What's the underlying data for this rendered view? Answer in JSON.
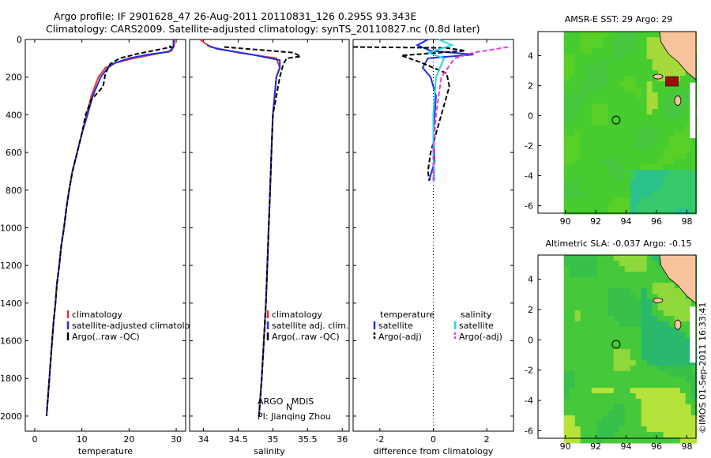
{
  "header": {
    "title_line1": "Argo profile: IF 2901628_47 26-Aug-2011 20110831_126 0.295S 93.343E",
    "title_line2": "Climatology: CARS2009. Satellite-adjusted climatology: synTS_20110827.nc (0.8d later)"
  },
  "colors": {
    "climatology": "#e8322a",
    "satellite": "#1f2fe0",
    "argo": "#000000",
    "sal_satellite": "#29d6e8",
    "sal_argo": "#e83ae0",
    "map_green": "#3fcf2a",
    "land": "#f7c39a",
    "hotspot": "#9c0d0d"
  },
  "depth_axis": {
    "ticks": [
      "0",
      "200",
      "400",
      "600",
      "800",
      "1000",
      "1200",
      "1400",
      "1600",
      "1800",
      "2000"
    ]
  },
  "chart_data": [
    {
      "type": "line",
      "id": "temperature-profile",
      "xlabel": "temperature",
      "xlim": [
        -2,
        32
      ],
      "ylim": [
        2080,
        0
      ],
      "xticks": [
        "0",
        "10",
        "20",
        "30"
      ],
      "legend": [
        "climatology",
        "satellite-adjusted climatology",
        "Argo(..raw -QC)"
      ],
      "series": [
        {
          "name": "climatology",
          "points": [
            [
              29.6,
              0
            ],
            [
              29.6,
              30
            ],
            [
              29,
              60
            ],
            [
              25,
              80
            ],
            [
              21,
              100
            ],
            [
              17,
              125
            ],
            [
              15,
              150
            ],
            [
              13.5,
              200
            ],
            [
              12,
              300
            ],
            [
              11,
              400
            ],
            [
              10,
              500
            ],
            [
              9,
              600
            ],
            [
              8,
              700
            ],
            [
              7.3,
              800
            ],
            [
              6.7,
              900
            ],
            [
              6.2,
              1000
            ],
            [
              5.6,
              1100
            ],
            [
              5.2,
              1200
            ],
            [
              4.7,
              1300
            ],
            [
              4.4,
              1400
            ],
            [
              4,
              1500
            ],
            [
              3.7,
              1600
            ],
            [
              3.4,
              1700
            ],
            [
              3.1,
              1800
            ],
            [
              2.8,
              1900
            ],
            [
              2.5,
              2000
            ]
          ]
        },
        {
          "name": "satellite",
          "points": [
            [
              29.4,
              0
            ],
            [
              29.4,
              40
            ],
            [
              28.5,
              65
            ],
            [
              24,
              80
            ],
            [
              20,
              100
            ],
            [
              17,
              125
            ],
            [
              15.5,
              150
            ],
            [
              14,
              200
            ],
            [
              12.3,
              300
            ],
            [
              11.2,
              400
            ],
            [
              10,
              500
            ],
            [
              9,
              600
            ],
            [
              8,
              700
            ],
            [
              7.3,
              800
            ],
            [
              6.7,
              900
            ],
            [
              6.2,
              1000
            ],
            [
              5.6,
              1100
            ],
            [
              5.2,
              1200
            ],
            [
              4.7,
              1300
            ],
            [
              4.4,
              1400
            ],
            [
              4,
              1500
            ],
            [
              3.7,
              1600
            ],
            [
              3.4,
              1700
            ],
            [
              3.1,
              1800
            ],
            [
              2.8,
              1900
            ],
            [
              2.5,
              2000
            ]
          ]
        },
        {
          "name": "argo",
          "points": [
            [
              28.5,
              35
            ],
            [
              29,
              40
            ],
            [
              26,
              55
            ],
            [
              22,
              75
            ],
            [
              18,
              100
            ],
            [
              16,
              130
            ],
            [
              15,
              180
            ],
            [
              14.5,
              250
            ],
            [
              12,
              320
            ],
            [
              10.8,
              400
            ],
            [
              10,
              500
            ],
            [
              9,
              600
            ],
            [
              8,
              700
            ],
            [
              7.3,
              800
            ],
            [
              6.7,
              900
            ],
            [
              6.2,
              1000
            ],
            [
              5.6,
              1100
            ],
            [
              5.2,
              1200
            ],
            [
              4.7,
              1300
            ],
            [
              4.4,
              1400
            ],
            [
              4,
              1500
            ],
            [
              3.7,
              1600
            ],
            [
              3.4,
              1700
            ],
            [
              3.1,
              1800
            ],
            [
              2.8,
              1900
            ],
            [
              2.5,
              2000
            ]
          ]
        }
      ]
    },
    {
      "type": "line",
      "id": "salinity-profile",
      "xlabel": "salinity",
      "xlim": [
        33.8,
        36.1
      ],
      "ylim": [
        2080,
        0
      ],
      "xticks": [
        "34",
        "34.5",
        "35",
        "35.5",
        "36"
      ],
      "legend": [
        "climatology",
        "satellite adj. clim.",
        "Argo(..raw -QC)"
      ],
      "annotation_lines": [
        "ARGO",
        "N",
        "MDIS",
        "PI: Jianqing Zhou"
      ],
      "series": [
        {
          "name": "climatology",
          "points": [
            [
              33.95,
              0
            ],
            [
              34.1,
              40
            ],
            [
              34.5,
              70
            ],
            [
              35.05,
              100
            ],
            [
              35.1,
              150
            ],
            [
              35.05,
              200
            ],
            [
              35.0,
              400
            ],
            [
              34.98,
              600
            ],
            [
              34.96,
              800
            ],
            [
              34.94,
              1000
            ],
            [
              34.92,
              1200
            ],
            [
              34.9,
              1400
            ],
            [
              34.87,
              1600
            ],
            [
              34.84,
              1800
            ],
            [
              34.8,
              2000
            ]
          ]
        },
        {
          "name": "satellite",
          "points": [
            [
              34.05,
              30
            ],
            [
              34.2,
              50
            ],
            [
              34.7,
              80
            ],
            [
              35.1,
              110
            ],
            [
              35.1,
              150
            ],
            [
              35.05,
              200
            ],
            [
              35.0,
              400
            ],
            [
              34.98,
              600
            ],
            [
              34.96,
              800
            ],
            [
              34.94,
              1000
            ],
            [
              34.92,
              1200
            ],
            [
              34.9,
              1400
            ],
            [
              34.87,
              1600
            ],
            [
              34.84,
              1800
            ],
            [
              34.8,
              2000
            ]
          ]
        },
        {
          "name": "argo",
          "points": [
            [
              34.3,
              40
            ],
            [
              34.8,
              55
            ],
            [
              35.3,
              70
            ],
            [
              35.4,
              90
            ],
            [
              35.2,
              100
            ],
            [
              35.15,
              130
            ],
            [
              35.1,
              200
            ],
            [
              35.0,
              400
            ],
            [
              34.98,
              600
            ],
            [
              34.96,
              800
            ],
            [
              34.94,
              1000
            ],
            [
              34.92,
              1200
            ],
            [
              34.9,
              1400
            ],
            [
              34.87,
              1600
            ],
            [
              34.84,
              1800
            ],
            [
              34.8,
              2000
            ]
          ]
        }
      ]
    },
    {
      "type": "line",
      "id": "difference-profile",
      "xlabel": "difference from climatology",
      "xlim": [
        -3,
        3
      ],
      "ylim": [
        2080,
        0
      ],
      "xticks": [
        "-2",
        "0",
        "2"
      ],
      "legend_headers": [
        "temperature",
        "salinity"
      ],
      "legend": [
        "satellite",
        "Argo(-adj)",
        "satellite",
        "Argo(-adj)"
      ],
      "series": [
        {
          "name": "temperature satellite",
          "points": [
            [
              -0.2,
              0
            ],
            [
              -0.6,
              30
            ],
            [
              -0.1,
              60
            ],
            [
              1.5,
              80
            ],
            [
              -0.2,
              100
            ],
            [
              -0.4,
              150
            ],
            [
              -0.1,
              200
            ],
            [
              0.1,
              300
            ],
            [
              0,
              500
            ],
            [
              0.05,
              650
            ],
            [
              -0.1,
              720
            ],
            [
              -0.15,
              750
            ]
          ]
        },
        {
          "name": "temperature Argo(-adj)",
          "points": [
            [
              -3,
              40
            ],
            [
              0.5,
              45
            ],
            [
              1.2,
              60
            ],
            [
              -1.2,
              85
            ],
            [
              -0.5,
              120
            ],
            [
              0.5,
              180
            ],
            [
              0.6,
              250
            ],
            [
              0.3,
              400
            ],
            [
              0.1,
              500
            ],
            [
              -0.1,
              600
            ],
            [
              -0.2,
              700
            ],
            [
              -0.15,
              750
            ]
          ]
        },
        {
          "name": "salinity satellite",
          "points": [
            [
              0.2,
              0
            ],
            [
              0.7,
              30
            ],
            [
              -0.2,
              70
            ],
            [
              0.4,
              100
            ],
            [
              0.1,
              200
            ],
            [
              0,
              400
            ],
            [
              0,
              600
            ],
            [
              0.05,
              750
            ]
          ]
        },
        {
          "name": "salinity Argo(-adj)",
          "points": [
            [
              2.8,
              40
            ],
            [
              1.5,
              70
            ],
            [
              0.8,
              100
            ],
            [
              0.3,
              200
            ],
            [
              0.1,
              400
            ],
            [
              0,
              600
            ],
            [
              0,
              750
            ]
          ]
        }
      ]
    }
  ],
  "maps": [
    {
      "id": "sst-map",
      "title": "AMSR-E SST: 29 Argo: 29",
      "lon_ticks": [
        "90",
        "92",
        "94",
        "96",
        "98"
      ],
      "lat_ticks": [
        "4",
        "2",
        "0",
        "-2",
        "-4",
        "-6"
      ],
      "lon_range": [
        88.2,
        98.6
      ],
      "lat_range": [
        -6.5,
        5.6
      ],
      "argo_lon": 93.343,
      "argo_lat": -0.295,
      "data_lon_start": 89.9
    },
    {
      "id": "sla-map",
      "title": "Altimetric SLA: -0.037 Argo: -0.15",
      "lon_ticks": [
        "90",
        "92",
        "94",
        "96",
        "98"
      ],
      "lat_ticks": [
        "4",
        "2",
        "0",
        "-2",
        "-4",
        "-6"
      ],
      "lon_range": [
        88.2,
        98.6
      ],
      "lat_range": [
        -6.5,
        5.6
      ],
      "argo_lon": 93.343,
      "argo_lat": -0.295,
      "data_lon_start": 89.9
    }
  ],
  "footer_stamp": "©IMOS 01-Sep-2011 16:33:41"
}
